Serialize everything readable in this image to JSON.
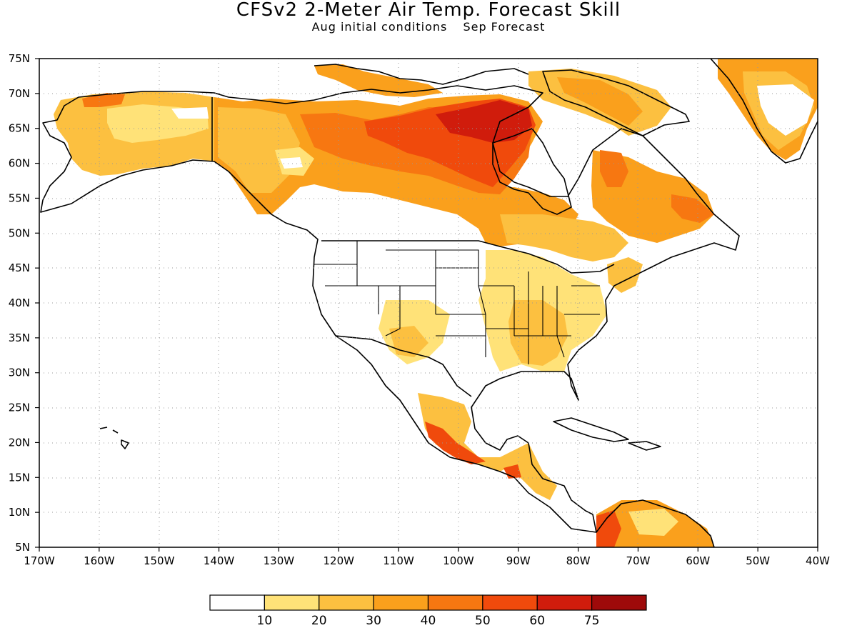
{
  "title": "CFSv2 2-Meter Air Temp. Forecast Skill",
  "subtitle": [
    "Aug initial conditions",
    "Sep Forecast"
  ],
  "map": {
    "region": "North America",
    "lon_range": [
      -170,
      -40
    ],
    "lat_range": [
      5,
      75
    ],
    "grid": "dotted",
    "lat_labels": [
      "75N",
      "70N",
      "65N",
      "60N",
      "55N",
      "50N",
      "45N",
      "40N",
      "35N",
      "30N",
      "25N",
      "20N",
      "15N",
      "10N",
      "5N"
    ],
    "lon_labels": [
      "170W",
      "160W",
      "150W",
      "140W",
      "130W",
      "120W",
      "110W",
      "100W",
      "90W",
      "80W",
      "70W",
      "60W",
      "50W",
      "40W"
    ]
  },
  "colorbar": {
    "labels": [
      "10",
      "20",
      "30",
      "40",
      "50",
      "60",
      "75"
    ],
    "colors": [
      "#ffffff",
      "#ffe278",
      "#fcc040",
      "#faa01c",
      "#f77711",
      "#f04a0c",
      "#d01c0c",
      "#9e0a0a"
    ]
  }
}
